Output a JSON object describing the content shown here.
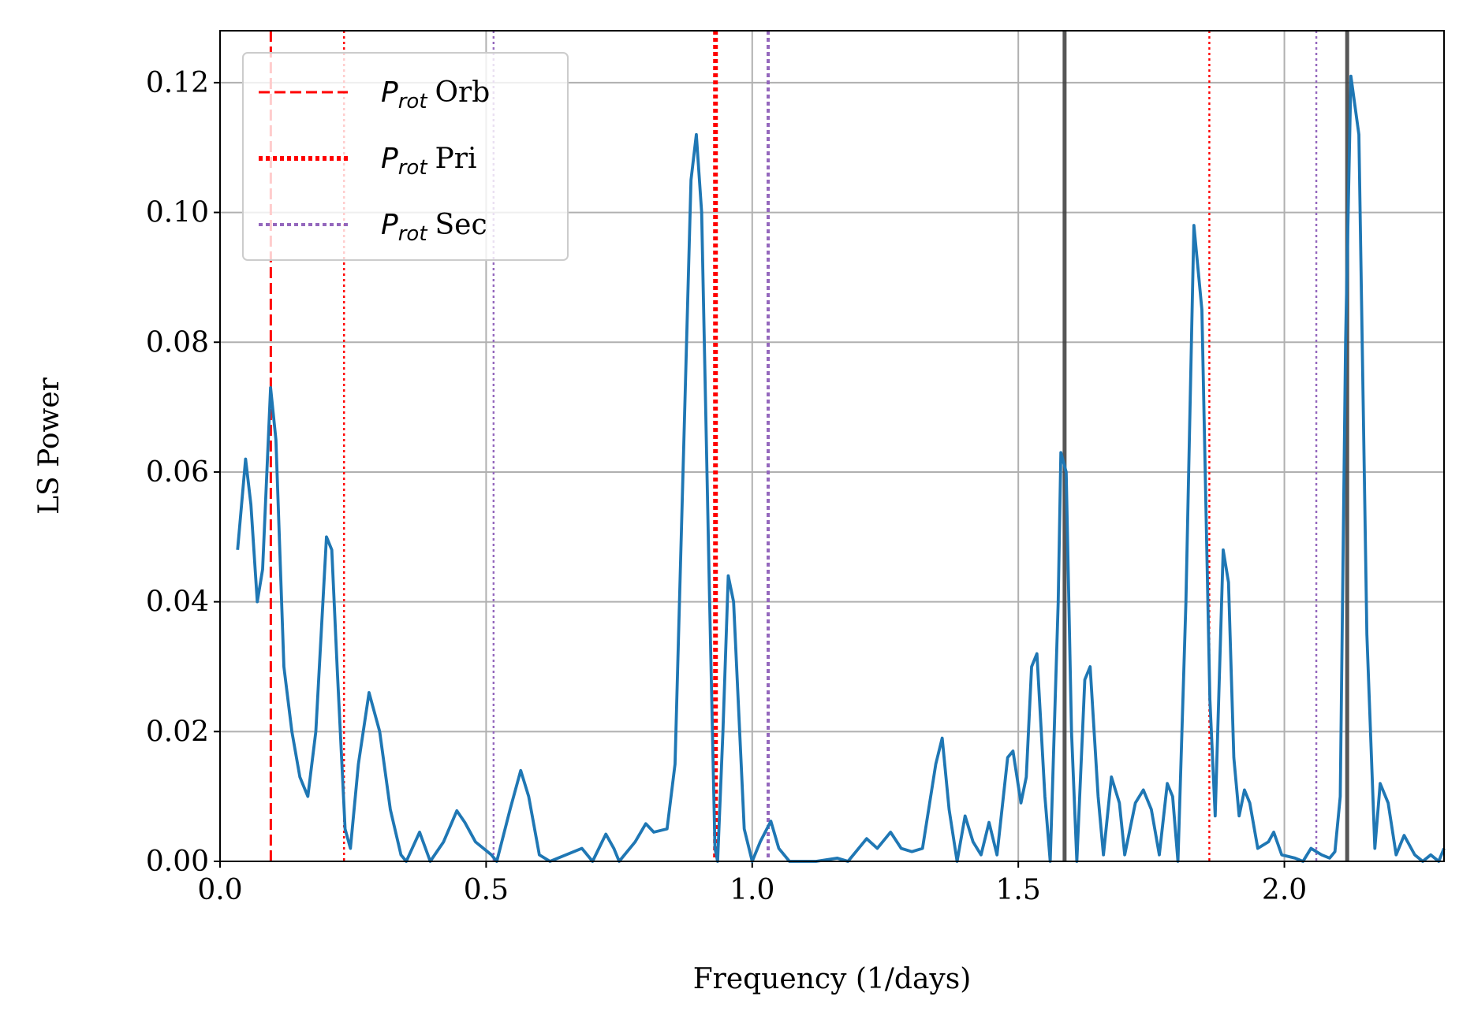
{
  "chart_data": {
    "type": "line",
    "xlabel": "Frequency (1/days)",
    "ylabel": "LS Power",
    "xlim": [
      0,
      2.3
    ],
    "ylim": [
      0,
      0.128
    ],
    "xticks": [
      {
        "value": 0,
        "label": "0.0"
      },
      {
        "value": 0.5,
        "label": "0.5"
      },
      {
        "value": 1,
        "label": "1.0"
      },
      {
        "value": 1.5,
        "label": "1.5"
      },
      {
        "value": 2,
        "label": "2.0"
      }
    ],
    "yticks": [
      {
        "value": 0,
        "label": "0.00"
      },
      {
        "value": 0.02,
        "label": "0.02"
      },
      {
        "value": 0.04,
        "label": "0.04"
      },
      {
        "value": 0.06,
        "label": "0.06"
      },
      {
        "value": 0.08,
        "label": "0.08"
      },
      {
        "value": 0.1,
        "label": "0.10"
      },
      {
        "value": 0.12,
        "label": "0.12"
      }
    ],
    "grid": true,
    "legend": "upper left",
    "x": [
      0.033,
      0.048,
      0.058,
      0.07,
      0.08,
      0.095,
      0.105,
      0.12,
      0.135,
      0.15,
      0.165,
      0.18,
      0.2,
      0.21,
      0.22,
      0.235,
      0.245,
      0.26,
      0.28,
      0.3,
      0.32,
      0.34,
      0.35,
      0.375,
      0.395,
      0.42,
      0.445,
      0.46,
      0.48,
      0.51,
      0.52,
      0.545,
      0.565,
      0.58,
      0.6,
      0.62,
      0.65,
      0.68,
      0.7,
      0.725,
      0.74,
      0.75,
      0.78,
      0.8,
      0.815,
      0.84,
      0.855,
      0.87,
      0.885,
      0.895,
      0.905,
      0.92,
      0.93,
      0.935,
      0.945,
      0.955,
      0.965,
      0.985,
      1.0,
      1.015,
      1.035,
      1.05,
      1.07,
      1.12,
      1.16,
      1.18,
      1.2,
      1.215,
      1.235,
      1.26,
      1.28,
      1.3,
      1.32,
      1.345,
      1.357,
      1.37,
      1.385,
      1.4,
      1.415,
      1.43,
      1.445,
      1.46,
      1.48,
      1.49,
      1.505,
      1.515,
      1.525,
      1.535,
      1.55,
      1.56,
      1.575,
      1.58,
      1.59,
      1.6,
      1.61,
      1.625,
      1.635,
      1.65,
      1.66,
      1.675,
      1.69,
      1.7,
      1.72,
      1.735,
      1.75,
      1.765,
      1.78,
      1.79,
      1.8,
      1.815,
      1.83,
      1.845,
      1.86,
      1.87,
      1.885,
      1.895,
      1.905,
      1.915,
      1.925,
      1.935,
      1.95,
      1.97,
      1.98,
      1.995,
      2.02,
      2.035,
      2.05,
      2.07,
      2.085,
      2.095,
      2.105,
      2.115,
      2.125,
      2.14,
      2.155,
      2.17,
      2.18,
      2.195,
      2.21,
      2.225,
      2.245,
      2.26,
      2.275,
      2.29,
      2.3
    ],
    "series": [
      {
        "color": "#1f77b4",
        "values": [
          0.048,
          0.062,
          0.055,
          0.04,
          0.045,
          0.073,
          0.065,
          0.03,
          0.02,
          0.013,
          0.01,
          0.02,
          0.05,
          0.048,
          0.03,
          0.005,
          0.002,
          0.015,
          0.026,
          0.02,
          0.008,
          0.001,
          0,
          0.0045,
          0,
          0.003,
          0.0078,
          0.006,
          0.003,
          0.001,
          0,
          0.008,
          0.014,
          0.01,
          0.001,
          0,
          0.001,
          0.002,
          0,
          0.0042,
          0.002,
          0,
          0.003,
          0.0058,
          0.0045,
          0.005,
          0.015,
          0.06,
          0.105,
          0.112,
          0.1,
          0.04,
          0.002,
          0,
          0.02,
          0.044,
          0.04,
          0.005,
          0,
          0.003,
          0.0062,
          0.002,
          0,
          0,
          0.0005,
          0,
          0.002,
          0.0035,
          0.002,
          0.0045,
          0.002,
          0.0015,
          0.002,
          0.015,
          0.019,
          0.008,
          0,
          0.007,
          0.003,
          0.001,
          0.006,
          0.001,
          0.016,
          0.017,
          0.009,
          0.013,
          0.03,
          0.032,
          0.01,
          0,
          0.04,
          0.063,
          0.06,
          0.02,
          0,
          0.028,
          0.03,
          0.01,
          0.001,
          0.013,
          0.009,
          0.001,
          0.009,
          0.011,
          0.008,
          0.001,
          0.012,
          0.01,
          0,
          0.04,
          0.098,
          0.085,
          0.025,
          0.007,
          0.048,
          0.043,
          0.016,
          0.007,
          0.011,
          0.009,
          0.002,
          0.003,
          0.0045,
          0.001,
          0.0005,
          0,
          0.002,
          0.001,
          0.0005,
          0.0015,
          0.01,
          0.08,
          0.121,
          0.112,
          0.035,
          0.002,
          0.012,
          0.009,
          0.001,
          0.004,
          0.001,
          0,
          0.001,
          0,
          0.002
        ]
      }
    ],
    "vlines": [
      {
        "label": {
          "symbol": "P",
          "subscript": "rot",
          "text": "Orb"
        },
        "color": "#ff0000",
        "style": "dashed",
        "x": [
          0.0954
        ],
        "harmonics": []
      },
      {
        "label": {
          "symbol": "P",
          "subscript": "rot",
          "text": "Pri"
        },
        "color": "#ff0000",
        "style": "dotted",
        "x": [
          0.931
        ],
        "harmonics": [
          0.233,
          1.859
        ]
      },
      {
        "label": {
          "symbol": "P",
          "subscript": "rot",
          "text": "Sec"
        },
        "color": "#9467bd",
        "style": "dotted",
        "x": [
          1.03
        ],
        "harmonics": [
          0.514,
          2.06
        ]
      }
    ],
    "marker_lines": {
      "color": "#444444",
      "x": [
        1.587,
        2.118
      ]
    }
  }
}
